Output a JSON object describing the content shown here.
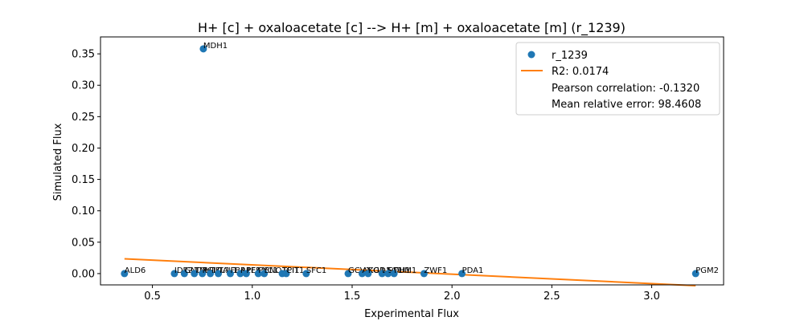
{
  "chart_data": {
    "type": "scatter",
    "title": "H+ [c] + oxaloacetate [c] --> H+ [m] + oxaloacetate [m] (r_1239)",
    "xlabel": "Experimental Flux",
    "ylabel": "Simulated Flux",
    "xlim": [
      0.24,
      3.36
    ],
    "ylim": [
      -0.018,
      0.377
    ],
    "xticks": [
      "0.5",
      "1.0",
      "1.5",
      "2.0",
      "2.5",
      "3.0"
    ],
    "yticks": [
      "0.00",
      "0.05",
      "0.10",
      "0.15",
      "0.20",
      "0.25",
      "0.30",
      "0.35"
    ],
    "grid": false,
    "legend_position": "top-right",
    "legend": {
      "series": "r_1239",
      "fit": "R2: 0.0174",
      "pearson": "Pearson correlation: -0.1320",
      "mre": "Mean relative error: 98.4608"
    },
    "colors": {
      "points": "#1f77b4",
      "fit": "#ff7f0e"
    },
    "series": [
      {
        "name": "r_1239",
        "points": [
          {
            "label": "ALD6",
            "x": 0.36,
            "y": 0.0
          },
          {
            "label": "IDP2",
            "x": 0.61,
            "y": 0.0
          },
          {
            "label": "GND1",
            "x": 0.66,
            "y": 0.0
          },
          {
            "label": "TDH1",
            "x": 0.71,
            "y": 0.0
          },
          {
            "label": "MDH1",
            "x": 0.755,
            "y": 0.358
          },
          {
            "label": "PGI1",
            "x": 0.75,
            "y": 0.0
          },
          {
            "label": "TKL1",
            "x": 0.79,
            "y": 0.0
          },
          {
            "label": "TAL1",
            "x": 0.83,
            "y": 0.0
          },
          {
            "label": "FBA1",
            "x": 0.89,
            "y": 0.0
          },
          {
            "label": "RPE1",
            "x": 0.94,
            "y": 0.0
          },
          {
            "label": "PFK1",
            "x": 0.97,
            "y": 0.0
          },
          {
            "label": "PYC1",
            "x": 1.03,
            "y": 0.0
          },
          {
            "label": "ENO1",
            "x": 1.06,
            "y": 0.0
          },
          {
            "label": "TPI1",
            "x": 1.15,
            "y": 0.0
          },
          {
            "label": "CIT1",
            "x": 1.17,
            "y": 0.0
          },
          {
            "label": "SFC1",
            "x": 1.27,
            "y": 0.0
          },
          {
            "label": "GCV1",
            "x": 1.48,
            "y": 0.0
          },
          {
            "label": "ACO1",
            "x": 1.55,
            "y": 0.0
          },
          {
            "label": "KGD1",
            "x": 1.58,
            "y": 0.0
          },
          {
            "label": "LSC1",
            "x": 1.65,
            "y": 0.0
          },
          {
            "label": "SDH1",
            "x": 1.68,
            "y": 0.0
          },
          {
            "label": "FUM1",
            "x": 1.71,
            "y": 0.0
          },
          {
            "label": "ZWF1",
            "x": 1.86,
            "y": 0.0
          },
          {
            "label": "PDA1",
            "x": 2.05,
            "y": 0.0
          },
          {
            "label": "PGM2",
            "x": 3.22,
            "y": 0.0
          }
        ]
      }
    ],
    "fit_line": {
      "x": [
        0.36,
        3.22
      ],
      "y": [
        0.0235,
        -0.0192
      ]
    }
  }
}
